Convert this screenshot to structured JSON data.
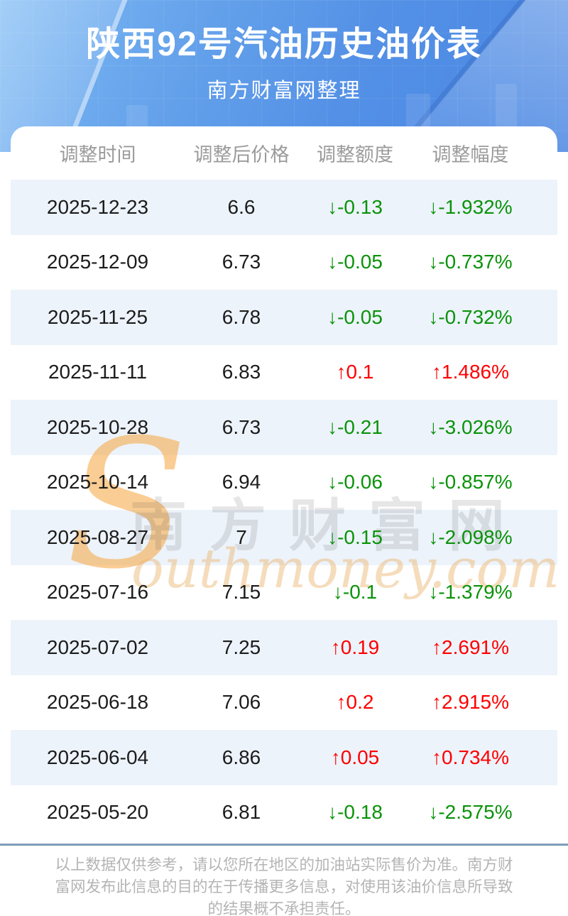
{
  "header": {
    "title": "陕西92号汽油历史油价表",
    "subtitle": "南方财富网整理"
  },
  "chart_data": {
    "type": "table",
    "title": "陕西92号汽油历史油价表",
    "subtitle": "南方财富网整理",
    "columns": [
      "调整时间",
      "调整后价格",
      "调整额度",
      "调整幅度"
    ],
    "rows": [
      [
        "2025-12-23",
        "6.6",
        "↓-0.13",
        "↓-1.932%"
      ],
      [
        "2025-12-09",
        "6.73",
        "↓-0.05",
        "↓-0.737%"
      ],
      [
        "2025-11-25",
        "6.78",
        "↓-0.05",
        "↓-0.732%"
      ],
      [
        "2025-11-11",
        "6.83",
        "↑0.1",
        "↑1.486%"
      ],
      [
        "2025-10-28",
        "6.73",
        "↓-0.21",
        "↓-3.026%"
      ],
      [
        "2025-10-14",
        "6.94",
        "↓-0.06",
        "↓-0.857%"
      ],
      [
        "2025-08-27",
        "7",
        "↓-0.15",
        "↓-2.098%"
      ],
      [
        "2025-07-16",
        "7.15",
        "↓-0.1",
        "↓-1.379%"
      ],
      [
        "2025-07-02",
        "7.25",
        "↑0.19",
        "↑2.691%"
      ],
      [
        "2025-06-18",
        "7.06",
        "↑0.2",
        "↑2.915%"
      ],
      [
        "2025-06-04",
        "6.86",
        "↑0.05",
        "↑0.734%"
      ],
      [
        "2025-05-20",
        "6.81",
        "↓-0.18",
        "↓-2.575%"
      ]
    ]
  },
  "watermark": {
    "initial": "S",
    "cn": "南方财富网",
    "en": "outhmoney.com"
  },
  "footer": {
    "disclaimer": "以上数据仅供参考，请以您所在地区的加油站实际售价为准。南方财富网发布此信息的目的在于传播更多信息，对使用该油价信息所导致的结果概不承担责任。"
  },
  "colors": {
    "up": "#fe0000",
    "down": "#0a930a",
    "stripe": "#edf3fb",
    "line": "#7e9db9",
    "hero-top": "#7cb9f4",
    "hero-bottom": "#4a86e2"
  }
}
